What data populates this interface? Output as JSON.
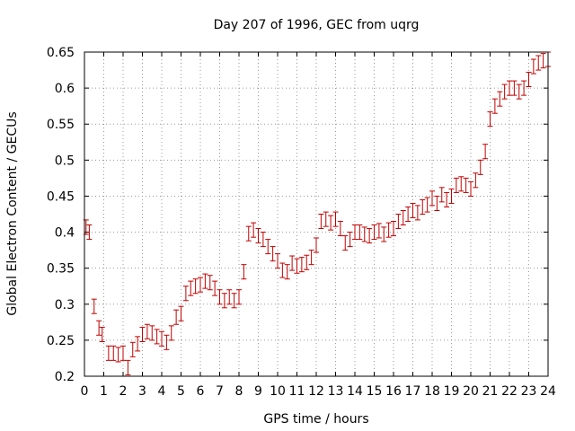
{
  "chart_data": {
    "type": "scatter",
    "title": "Day 207 of 1996, GEC from uqrg",
    "xlabel": "GPS time / hours",
    "ylabel": "Global Electron Content / GECUs",
    "xlim": [
      0,
      24
    ],
    "ylim": [
      0.2,
      0.65
    ],
    "xticks": [
      "0",
      "1",
      "2",
      "3",
      "4",
      "5",
      "6",
      "7",
      "8",
      "9",
      "10",
      "11",
      "12",
      "13",
      "14",
      "15",
      "16",
      "17",
      "18",
      "19",
      "20",
      "21",
      "22",
      "23",
      "24"
    ],
    "yticks": [
      "0.2",
      "0.25",
      "0.3",
      "0.35",
      "0.4",
      "0.45",
      "0.5",
      "0.55",
      "0.6",
      "0.65"
    ],
    "grid": true,
    "error_bar": 0.01,
    "color": "#c00000",
    "series": [
      {
        "x": [
          0.083,
          0.25,
          0.5,
          0.75,
          0.917,
          1.25,
          1.5,
          1.75,
          2.0,
          2.25,
          2.5,
          2.75,
          3.0,
          3.25,
          3.5,
          3.75,
          4.0,
          4.25,
          4.5,
          4.75,
          5.0,
          5.25,
          5.5,
          5.75,
          6.0,
          6.25,
          6.5,
          6.75,
          7.0,
          7.25,
          7.5,
          7.75,
          8.0,
          8.25,
          8.5,
          8.75,
          9.0,
          9.25,
          9.5,
          9.75,
          10.0,
          10.25,
          10.5,
          10.75,
          11.0,
          11.25,
          11.5,
          11.75,
          12.0,
          12.25,
          12.5,
          12.75,
          13.0,
          13.25,
          13.5,
          13.75,
          14.0,
          14.25,
          14.5,
          14.75,
          15.0,
          15.25,
          15.5,
          15.75,
          16.0,
          16.25,
          16.5,
          16.75,
          17.0,
          17.25,
          17.5,
          17.75,
          18.0,
          18.25,
          18.5,
          18.75,
          19.0,
          19.25,
          19.5,
          19.75,
          20.0,
          20.25,
          20.5,
          20.75,
          21.0,
          21.25,
          21.5,
          21.75,
          22.0,
          22.25,
          22.5,
          22.75,
          23.0,
          23.25,
          23.5,
          23.75,
          24.0
        ],
        "y": [
          0.407,
          0.4,
          0.297,
          0.267,
          0.258,
          0.232,
          0.232,
          0.23,
          0.232,
          0.212,
          0.237,
          0.245,
          0.258,
          0.262,
          0.26,
          0.255,
          0.252,
          0.247,
          0.26,
          0.282,
          0.287,
          0.315,
          0.322,
          0.325,
          0.327,
          0.332,
          0.33,
          0.322,
          0.31,
          0.305,
          0.31,
          0.305,
          0.31,
          0.345,
          0.398,
          0.403,
          0.395,
          0.39,
          0.38,
          0.37,
          0.36,
          0.347,
          0.345,
          0.357,
          0.353,
          0.355,
          0.358,
          0.365,
          0.382,
          0.415,
          0.418,
          0.413,
          0.418,
          0.405,
          0.385,
          0.39,
          0.4,
          0.4,
          0.397,
          0.395,
          0.4,
          0.402,
          0.397,
          0.403,
          0.405,
          0.415,
          0.42,
          0.425,
          0.43,
          0.427,
          0.435,
          0.438,
          0.447,
          0.44,
          0.452,
          0.445,
          0.45,
          0.465,
          0.467,
          0.465,
          0.46,
          0.472,
          0.49,
          0.512,
          0.557,
          0.575,
          0.585,
          0.595,
          0.6,
          0.6,
          0.595,
          0.6,
          0.612,
          0.63,
          0.635,
          0.638,
          0.64
        ]
      }
    ]
  }
}
